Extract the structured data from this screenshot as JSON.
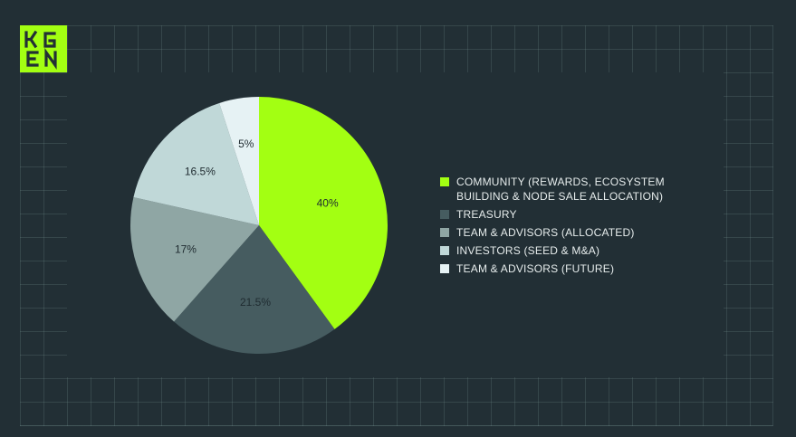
{
  "logo": {
    "line1": "KG",
    "line2": "EN",
    "color": "#a3ff12"
  },
  "chart_data": {
    "type": "pie",
    "categories": [
      "COMMUNITY (REWARDS, ECOSYSTEM BUILDING & NODE SALE ALLOCATION)",
      "TREASURY",
      "TEAM & ADVISORS (ALLOCATED)",
      "INVESTORS (SEED & M&A)",
      "TEAM & ADVISORS (FUTURE)"
    ],
    "values": [
      40,
      21.5,
      17,
      16.5,
      5
    ],
    "labels": [
      "40%",
      "21.5%",
      "17%",
      "16.5%",
      "5%"
    ],
    "colors": [
      "#a3ff12",
      "#465c60",
      "#8fa6a4",
      "#c0d8d8",
      "#e6f2f4"
    ],
    "legend_position": "right"
  }
}
